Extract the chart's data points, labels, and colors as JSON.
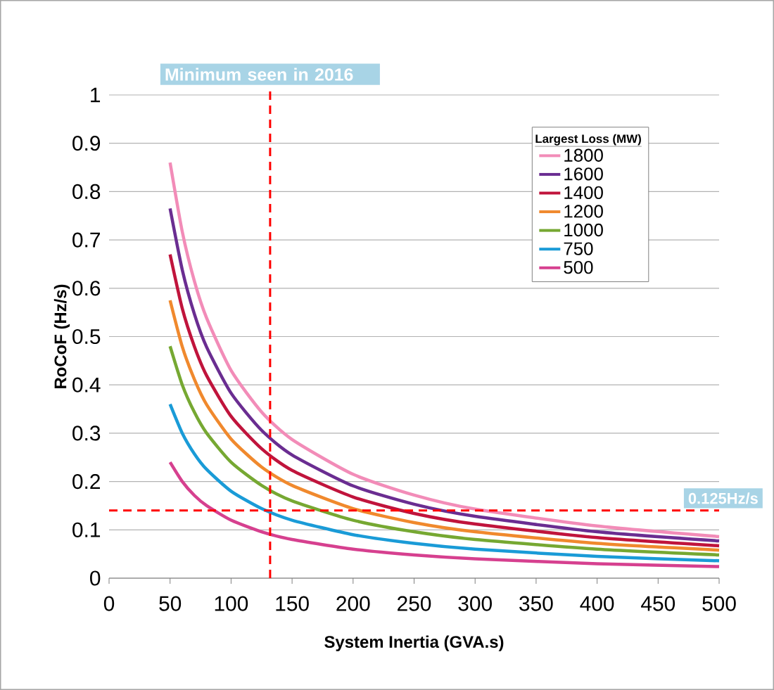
{
  "chart_data": {
    "type": "line",
    "xlabel": "System Inertia (GVA.s)",
    "ylabel": "RoCoF (Hz/s)",
    "legend_title": "Largest Loss (MW)",
    "legend": "top right",
    "grid": "y",
    "marker": "none",
    "line_style": "solid",
    "x": [
      50,
      60,
      70,
      80,
      100,
      125,
      150,
      200,
      250,
      300,
      400,
      500
    ],
    "xlim": [
      0,
      500
    ],
    "xticks": [
      0,
      50,
      100,
      150,
      200,
      250,
      300,
      350,
      400,
      450,
      500
    ],
    "ylim": [
      0,
      1
    ],
    "yticks": [
      0,
      0.1,
      0.2,
      0.3,
      0.4,
      0.5,
      0.6,
      0.7,
      0.8,
      0.9,
      1
    ],
    "series": [
      {
        "name": "1800",
        "color": "#f28cb8",
        "values": [
          0.86,
          0.717,
          0.614,
          0.538,
          0.43,
          0.344,
          0.287,
          0.215,
          0.172,
          0.143,
          0.108,
          0.086
        ]
      },
      {
        "name": "1600",
        "color": "#6a2d91",
        "values": [
          0.765,
          0.638,
          0.546,
          0.478,
          0.383,
          0.306,
          0.255,
          0.191,
          0.153,
          0.128,
          0.096,
          0.077
        ]
      },
      {
        "name": "1400",
        "color": "#c0143c",
        "values": [
          0.67,
          0.558,
          0.479,
          0.419,
          0.335,
          0.268,
          0.223,
          0.168,
          0.134,
          0.112,
          0.084,
          0.067
        ]
      },
      {
        "name": "1200",
        "color": "#f0892d",
        "values": [
          0.575,
          0.479,
          0.411,
          0.359,
          0.288,
          0.23,
          0.192,
          0.144,
          0.115,
          0.096,
          0.072,
          0.058
        ]
      },
      {
        "name": "1000",
        "color": "#76a832",
        "values": [
          0.48,
          0.4,
          0.343,
          0.3,
          0.24,
          0.192,
          0.16,
          0.12,
          0.096,
          0.08,
          0.06,
          0.048
        ]
      },
      {
        "name": "750",
        "color": "#1a9bd7",
        "values": [
          0.36,
          0.3,
          0.257,
          0.225,
          0.18,
          0.144,
          0.12,
          0.09,
          0.072,
          0.06,
          0.045,
          0.036
        ]
      },
      {
        "name": "500",
        "color": "#d6408f",
        "values": [
          0.24,
          0.2,
          0.171,
          0.15,
          0.12,
          0.096,
          0.08,
          0.06,
          0.048,
          0.04,
          0.03,
          0.024
        ]
      }
    ],
    "ref_lines": [
      {
        "axis": "x",
        "value": 132,
        "label": "Minimum seen in 2016",
        "color": "#ff0000",
        "line_style": "dashed"
      },
      {
        "axis": "y",
        "value": 0.14,
        "label": "0.125Hz/s",
        "color": "#ff0000",
        "line_style": "dashed"
      }
    ]
  }
}
